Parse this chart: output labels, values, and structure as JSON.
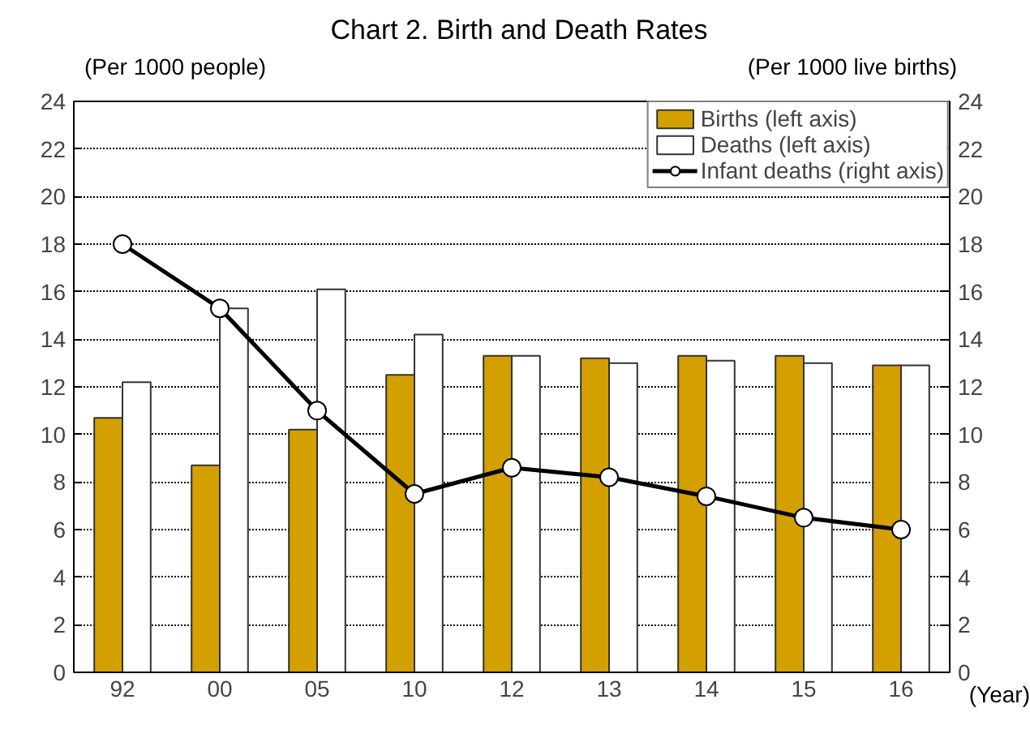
{
  "chart_data": {
    "type": "bar",
    "title": "Chart 2. Birth and Death Rates",
    "ylabel": "(Per 1000 people)",
    "y2label": "(Per 1000 live births)",
    "xlabel": "(Year)",
    "categories": [
      "92",
      "00",
      "05",
      "10",
      "12",
      "13",
      "14",
      "15",
      "16"
    ],
    "series": [
      {
        "name": "Births (left axis)",
        "color": "#d4a000",
        "values": [
          10.7,
          8.7,
          10.2,
          12.5,
          13.3,
          13.2,
          13.3,
          13.3,
          12.9
        ]
      },
      {
        "name": "Deaths (left axis)",
        "color": "#ffffff",
        "values": [
          12.2,
          15.3,
          16.1,
          14.2,
          13.3,
          13.0,
          13.1,
          13.0,
          12.9
        ]
      },
      {
        "name": "Infant deaths (right axis)",
        "type": "line",
        "axis": "y2",
        "color": "#000000",
        "marker": "circle",
        "values": [
          18.0,
          15.3,
          11.0,
          7.5,
          8.6,
          8.2,
          7.4,
          6.5,
          6.0
        ]
      }
    ],
    "ylim": [
      0,
      24
    ],
    "yticks": [
      0,
      2,
      4,
      6,
      8,
      10,
      12,
      14,
      16,
      18,
      20,
      22,
      24
    ],
    "y2lim": [
      0,
      24
    ],
    "y2ticks": [
      0,
      2,
      4,
      6,
      8,
      10,
      12,
      14,
      16,
      18,
      20,
      22,
      24
    ],
    "grid": "y",
    "legend": "top right"
  }
}
